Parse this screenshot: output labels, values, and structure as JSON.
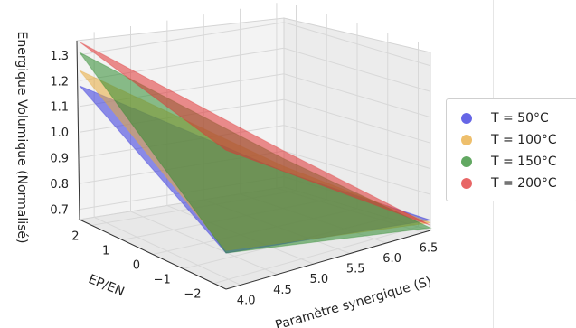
{
  "chart_data": {
    "type": "surface3d",
    "title": "",
    "xlabel": "Paramètre synergique (S)",
    "ylabel": "EP/EN",
    "zlabel": "Energique Volumique (Normalisé)",
    "x_ticks": [
      "4.0",
      "4.5",
      "5.0",
      "5.5",
      "6.0",
      "6.5"
    ],
    "y_ticks": [
      "2",
      "1",
      "0",
      "−1",
      "−2"
    ],
    "z_ticks": [
      "0.7",
      "0.8",
      "0.9",
      "1.0",
      "1.1",
      "1.2",
      "1.3"
    ],
    "xlim": [
      3.8,
      6.6
    ],
    "ylim": [
      -2.4,
      2.4
    ],
    "zlim": [
      0.66,
      1.38
    ],
    "grid": true,
    "legend_position": "right",
    "series": [
      {
        "name": "T = 50°C",
        "color": "#3333dd",
        "z_corners": {
          "s_min_ep_max": 1.18,
          "s_max_ep_max": 0.72,
          "s_max_ep_min": 0.7,
          "s_min_ep_min": 0.8
        }
      },
      {
        "name": "T = 100°C",
        "color": "#e8a93b",
        "z_corners": {
          "s_min_ep_max": 1.24,
          "s_max_ep_max": 0.74,
          "s_max_ep_min": 0.69,
          "s_min_ep_min": 0.81
        }
      },
      {
        "name": "T = 150°C",
        "color": "#2e8b2e",
        "z_corners": {
          "s_min_ep_max": 1.31,
          "s_max_ep_max": 0.77,
          "s_max_ep_min": 0.67,
          "s_min_ep_min": 0.8
        }
      },
      {
        "name": "T = 200°C",
        "color": "#e03333",
        "z_corners": {
          "s_min_ep_max": 1.35,
          "s_max_ep_max": 0.8,
          "s_max_ep_min": 0.68,
          "s_min_ep_min": 1.2
        }
      }
    ]
  }
}
